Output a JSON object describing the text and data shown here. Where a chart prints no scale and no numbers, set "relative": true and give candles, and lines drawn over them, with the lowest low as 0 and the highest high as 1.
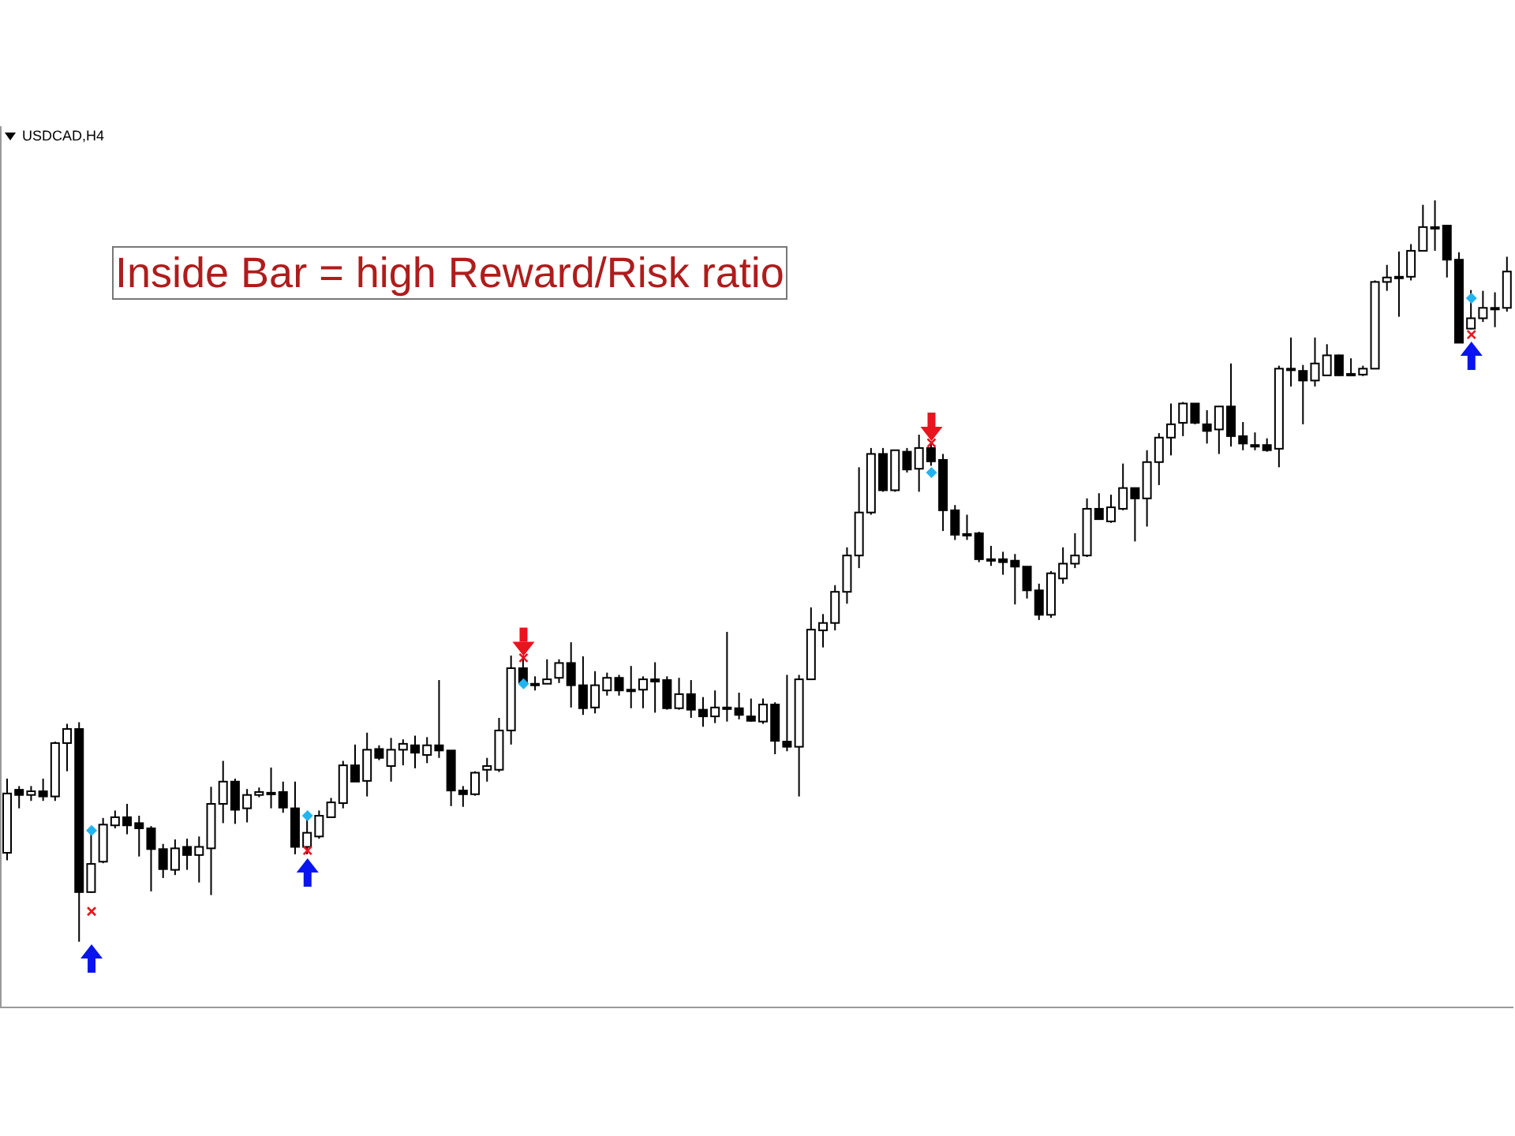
{
  "chart_data": {
    "type": "candlestick",
    "title": "Inside Bar = high Reward/Risk ratio",
    "subtitle": "USDCAD,H4",
    "relative": true,
    "color": "#000000",
    "categories": [
      null,
      null,
      null,
      null,
      null,
      null,
      null,
      null,
      null,
      null,
      null,
      null,
      null,
      null,
      null,
      null,
      null,
      null,
      null,
      null,
      null,
      null,
      null,
      null,
      null,
      null,
      null,
      null,
      null,
      null,
      null,
      null,
      null,
      null,
      null,
      null,
      null,
      null,
      null,
      null,
      null,
      null,
      null,
      null,
      null,
      null,
      null,
      null,
      null,
      null,
      null,
      null,
      null,
      null,
      null,
      null,
      null,
      null,
      null,
      null,
      null,
      null,
      null,
      null,
      null,
      null,
      null,
      null,
      null,
      null,
      null,
      null,
      null,
      null,
      null,
      null,
      null,
      null,
      null,
      null,
      null,
      null,
      null,
      null,
      null,
      null,
      null,
      null,
      null,
      null,
      null,
      null,
      null,
      null,
      null,
      null,
      null,
      null,
      null,
      null,
      null,
      null,
      null,
      null,
      null,
      null,
      null,
      null,
      null,
      null,
      null,
      null,
      null,
      null,
      null,
      null,
      null,
      null,
      null,
      null,
      null,
      null,
      null,
      null,
      null,
      null
    ],
    "ohlc": [
      [
        0.12,
        0.22,
        0.11,
        0.2
      ],
      [
        0.205,
        0.21,
        0.18,
        0.198
      ],
      [
        0.198,
        0.21,
        0.19,
        0.203
      ],
      [
        0.203,
        0.22,
        0.19,
        0.196
      ],
      [
        0.196,
        0.27,
        0.19,
        0.268
      ],
      [
        0.268,
        0.294,
        0.23,
        0.287
      ],
      [
        0.287,
        0.296,
        0,
        0.067
      ],
      [
        0.067,
        0.15,
        0.066,
        0.105
      ],
      [
        0.108,
        0.167,
        0.106,
        0.158
      ],
      [
        0.157,
        0.177,
        0.153,
        0.168
      ],
      [
        0.168,
        0.186,
        0.145,
        0.157
      ],
      [
        0.16,
        0.17,
        0.115,
        0.153
      ],
      [
        0.153,
        0.156,
        0.068,
        0.125
      ],
      [
        0.125,
        0.132,
        0.086,
        0.098
      ],
      [
        0.097,
        0.138,
        0.09,
        0.126
      ],
      [
        0.128,
        0.139,
        0.097,
        0.117
      ],
      [
        0.117,
        0.142,
        0.08,
        0.128
      ],
      [
        0.126,
        0.209,
        0.063,
        0.186
      ],
      [
        0.186,
        0.244,
        0.16,
        0.216
      ],
      [
        0.216,
        0.22,
        0.159,
        0.178
      ],
      [
        0.18,
        0.206,
        0.161,
        0.198
      ],
      [
        0.198,
        0.208,
        0.195,
        0.202
      ],
      [
        0.201,
        0.235,
        0.18,
        0.2
      ],
      [
        0.202,
        0.216,
        0.174,
        0.181
      ],
      [
        0.18,
        0.216,
        0.118,
        0.128
      ],
      [
        0.128,
        0.17,
        0.118,
        0.147
      ],
      [
        0.142,
        0.177,
        0.139,
        0.17
      ],
      [
        0.168,
        0.194,
        0.168,
        0.188
      ],
      [
        0.187,
        0.244,
        0.18,
        0.238
      ],
      [
        0.238,
        0.266,
        0.216,
        0.216
      ],
      [
        0.217,
        0.282,
        0.196,
        0.259
      ],
      [
        0.26,
        0.265,
        0.245,
        0.248
      ],
      [
        0.237,
        0.275,
        0.216,
        0.259
      ],
      [
        0.259,
        0.273,
        0.238,
        0.267
      ],
      [
        0.265,
        0.278,
        0.234,
        0.255
      ],
      [
        0.252,
        0.276,
        0.241,
        0.265
      ],
      [
        0.265,
        0.353,
        0.248,
        0.258
      ],
      [
        0.258,
        0.258,
        0.183,
        0.204
      ],
      [
        0.204,
        0.21,
        0.182,
        0.199
      ],
      [
        0.199,
        0.23,
        0.197,
        0.228
      ],
      [
        0.232,
        0.248,
        0.216,
        0.237
      ],
      [
        0.232,
        0.302,
        0.229,
        0.285
      ],
      [
        0.285,
        0.386,
        0.266,
        0.369
      ],
      [
        0.369,
        0.386,
        0.348,
        0.35
      ],
      [
        0.348,
        0.358,
        0.339,
        0.347
      ],
      [
        0.348,
        0.381,
        0.348,
        0.354
      ],
      [
        0.356,
        0.381,
        0.349,
        0.376
      ],
      [
        0.376,
        0.404,
        0.316,
        0.346
      ],
      [
        0.346,
        0.385,
        0.306,
        0.315
      ],
      [
        0.316,
        0.365,
        0.308,
        0.346
      ],
      [
        0.339,
        0.363,
        0.332,
        0.356
      ],
      [
        0.356,
        0.36,
        0.332,
        0.339
      ],
      [
        0.34,
        0.372,
        0.315,
        0.339
      ],
      [
        0.34,
        0.358,
        0.315,
        0.354
      ],
      [
        0.354,
        0.377,
        0.309,
        0.351
      ],
      [
        0.353,
        0.358,
        0.313,
        0.315
      ],
      [
        0.315,
        0.356,
        0.313,
        0.334
      ],
      [
        0.334,
        0.353,
        0.302,
        0.313
      ],
      [
        0.313,
        0.33,
        0.29,
        0.304
      ],
      [
        0.304,
        0.339,
        0.295,
        0.316
      ],
      [
        0.316,
        0.418,
        0.297,
        0.315
      ],
      [
        0.315,
        0.336,
        0.3,
        0.306
      ],
      [
        0.304,
        0.328,
        0.297,
        0.298
      ],
      [
        0.297,
        0.328,
        0.294,
        0.32
      ],
      [
        0.32,
        0.323,
        0.253,
        0.271
      ],
      [
        0.27,
        0.36,
        0.257,
        0.263
      ],
      [
        0.263,
        0.36,
        0.196,
        0.354
      ],
      [
        0.354,
        0.451,
        0.353,
        0.421
      ],
      [
        0.42,
        0.442,
        0.397,
        0.43
      ],
      [
        0.43,
        0.481,
        0.42,
        0.472
      ],
      [
        0.472,
        0.532,
        0.456,
        0.521
      ],
      [
        0.521,
        0.64,
        0.504,
        0.579
      ],
      [
        0.579,
        0.666,
        0.576,
        0.658
      ],
      [
        0.658,
        0.666,
        0.607,
        0.609
      ],
      [
        0.609,
        0.663,
        0.607,
        0.663
      ],
      [
        0.661,
        0.666,
        0.633,
        0.637
      ],
      [
        0.638,
        0.684,
        0.607,
        0.666
      ],
      [
        0.666,
        0.672,
        0.642,
        0.648
      ],
      [
        0.65,
        0.658,
        0.554,
        0.582
      ],
      [
        0.582,
        0.589,
        0.542,
        0.549
      ],
      [
        0.55,
        0.576,
        0.542,
        0.55
      ],
      [
        0.551,
        0.553,
        0.512,
        0.516
      ],
      [
        0.516,
        0.534,
        0.507,
        0.516
      ],
      [
        0.516,
        0.526,
        0.495,
        0.512
      ],
      [
        0.514,
        0.523,
        0.455,
        0.506
      ],
      [
        0.506,
        0.506,
        0.463,
        0.474
      ],
      [
        0.474,
        0.483,
        0.434,
        0.441
      ],
      [
        0.441,
        0.5,
        0.437,
        0.497
      ],
      [
        0.49,
        0.532,
        0.483,
        0.51
      ],
      [
        0.51,
        0.551,
        0.504,
        0.521
      ],
      [
        0.521,
        0.598,
        0.519,
        0.584
      ],
      [
        0.584,
        0.605,
        0.569,
        0.57
      ],
      [
        0.567,
        0.603,
        0.565,
        0.586
      ],
      [
        0.584,
        0.645,
        0.582,
        0.612
      ],
      [
        0.612,
        0.612,
        0.54,
        0.598
      ],
      [
        0.598,
        0.663,
        0.56,
        0.647
      ],
      [
        0.647,
        0.686,
        0.616,
        0.68
      ],
      [
        0.68,
        0.726,
        0.656,
        0.698
      ],
      [
        0.7,
        0.728,
        0.682,
        0.726
      ],
      [
        0.726,
        0.726,
        0.698,
        0.7
      ],
      [
        0.698,
        0.717,
        0.672,
        0.689
      ],
      [
        0.691,
        0.722,
        0.658,
        0.722
      ],
      [
        0.722,
        0.78,
        0.668,
        0.682
      ],
      [
        0.682,
        0.701,
        0.663,
        0.672
      ],
      [
        0.67,
        0.687,
        0.663,
        0.67
      ],
      [
        0.67,
        0.679,
        0.661,
        0.663
      ],
      [
        0.665,
        0.777,
        0.64,
        0.773
      ],
      [
        0.773,
        0.815,
        0.749,
        0.773
      ],
      [
        0.77,
        0.778,
        0.698,
        0.757
      ],
      [
        0.757,
        0.815,
        0.749,
        0.78
      ],
      [
        0.764,
        0.806,
        0.764,
        0.791
      ],
      [
        0.791,
        0.792,
        0.763,
        0.764
      ],
      [
        0.766,
        0.787,
        0.763,
        0.766
      ],
      [
        0.765,
        0.777,
        0.763,
        0.773
      ],
      [
        0.773,
        0.892,
        0.773,
        0.89
      ],
      [
        0.89,
        0.913,
        0.878,
        0.896
      ],
      [
        0.897,
        0.931,
        0.843,
        0.897
      ],
      [
        0.897,
        0.941,
        0.892,
        0.932
      ],
      [
        0.932,
        0.994,
        0.932,
        0.964
      ],
      [
        0.964,
        1,
        0.932,
        0.964
      ],
      [
        0.966,
        0.966,
        0.896,
        0.92
      ],
      [
        0.92,
        0.93,
        0.808,
        0.808
      ],
      [
        0.827,
        0.879,
        0.826,
        0.841
      ],
      [
        0.841,
        0.878,
        0.836,
        0.855
      ],
      [
        0.855,
        0.876,
        0.829,
        0.855
      ],
      [
        0.855,
        0.924,
        0.85,
        0.904
      ]
    ],
    "series": [
      {
        "type": "scatter",
        "marker": "triangle",
        "color": "#0a14f0",
        "values": [
          null,
          null,
          null,
          null,
          null,
          null,
          null,
          -0.013,
          null,
          null,
          null,
          null,
          null,
          null,
          null,
          null,
          null,
          null,
          null,
          null,
          null,
          null,
          null,
          null,
          null,
          0.103,
          null,
          null,
          null,
          null,
          null,
          null,
          null,
          null,
          null,
          null,
          null,
          null,
          null,
          null,
          null,
          null,
          null,
          null,
          null,
          null,
          null,
          null,
          null,
          null,
          null,
          null,
          null,
          null,
          null,
          null,
          null,
          null,
          null,
          null,
          null,
          null,
          null,
          null,
          null,
          null,
          null,
          null,
          null,
          null,
          null,
          null,
          null,
          null,
          null,
          null,
          null,
          null,
          null,
          null,
          null,
          null,
          null,
          null,
          null,
          null,
          null,
          null,
          null,
          null,
          null,
          null,
          null,
          null,
          null,
          null,
          null,
          null,
          null,
          null,
          null,
          null,
          null,
          null,
          null,
          null,
          null,
          null,
          null,
          null,
          null,
          null,
          null,
          null,
          null,
          null,
          null,
          null,
          null,
          null,
          null,
          null,
          0.8,
          null,
          null,
          null
        ]
      },
      {
        "type": "scatter",
        "marker": "triangle",
        "color": "#e8141e",
        "values": [
          null,
          null,
          null,
          null,
          null,
          null,
          null,
          null,
          null,
          null,
          null,
          null,
          null,
          null,
          null,
          null,
          null,
          null,
          null,
          null,
          null,
          null,
          null,
          null,
          null,
          null,
          null,
          null,
          null,
          null,
          null,
          null,
          null,
          null,
          null,
          null,
          null,
          null,
          null,
          null,
          null,
          null,
          null,
          0.395,
          null,
          null,
          null,
          null,
          null,
          null,
          null,
          null,
          null,
          null,
          null,
          null,
          null,
          null,
          null,
          null,
          null,
          null,
          null,
          null,
          null,
          null,
          null,
          null,
          null,
          null,
          null,
          null,
          null,
          null,
          null,
          null,
          null,
          0.685,
          null,
          null,
          null,
          null,
          null,
          null,
          null,
          null,
          null,
          null,
          null,
          null,
          null,
          null,
          null,
          null,
          null,
          null,
          null,
          null,
          null,
          null,
          null,
          null,
          null,
          null,
          null,
          null,
          null,
          null,
          null,
          null,
          null,
          null,
          null,
          null,
          null,
          null,
          null,
          null,
          null,
          null,
          null,
          null,
          null,
          null,
          null,
          null
        ]
      },
      {
        "type": "scatter",
        "marker": "diamond",
        "color": "#22b4f0",
        "values": [
          null,
          null,
          null,
          null,
          null,
          null,
          null,
          0.15,
          null,
          null,
          null,
          null,
          null,
          null,
          null,
          null,
          null,
          null,
          null,
          null,
          null,
          null,
          null,
          null,
          null,
          0.17,
          null,
          null,
          null,
          null,
          null,
          null,
          null,
          null,
          null,
          null,
          null,
          null,
          null,
          null,
          null,
          null,
          null,
          0.348,
          null,
          null,
          null,
          null,
          null,
          null,
          null,
          null,
          null,
          null,
          null,
          null,
          null,
          null,
          null,
          null,
          null,
          null,
          null,
          null,
          null,
          null,
          null,
          null,
          null,
          null,
          null,
          null,
          null,
          null,
          null,
          null,
          null,
          0.633,
          null,
          null,
          null,
          null,
          null,
          null,
          null,
          null,
          null,
          null,
          null,
          null,
          null,
          null,
          null,
          null,
          null,
          null,
          null,
          null,
          null,
          null,
          null,
          null,
          null,
          null,
          null,
          null,
          null,
          null,
          null,
          null,
          null,
          null,
          null,
          null,
          null,
          null,
          null,
          null,
          null,
          null,
          null,
          null,
          0.868,
          null,
          null,
          null
        ]
      },
      {
        "type": "scatter",
        "marker": "cross",
        "color": "#e8141e",
        "values": [
          null,
          null,
          null,
          null,
          null,
          null,
          null,
          0.041,
          null,
          null,
          null,
          null,
          null,
          null,
          null,
          null,
          null,
          null,
          null,
          null,
          null,
          null,
          null,
          null,
          null,
          0.123,
          null,
          null,
          null,
          null,
          null,
          null,
          null,
          null,
          null,
          null,
          null,
          null,
          null,
          null,
          null,
          null,
          null,
          0.383,
          null,
          null,
          null,
          null,
          null,
          null,
          null,
          null,
          null,
          null,
          null,
          null,
          null,
          null,
          null,
          null,
          null,
          null,
          null,
          null,
          null,
          null,
          null,
          null,
          null,
          null,
          null,
          null,
          null,
          null,
          null,
          null,
          null,
          0.673,
          null,
          null,
          null,
          null,
          null,
          null,
          null,
          null,
          null,
          null,
          null,
          null,
          null,
          null,
          null,
          null,
          null,
          null,
          null,
          null,
          null,
          null,
          null,
          null,
          null,
          null,
          null,
          null,
          null,
          null,
          null,
          null,
          null,
          null,
          null,
          null,
          null,
          null,
          null,
          null,
          null,
          null,
          null,
          null,
          0.819,
          null,
          null,
          null
        ]
      }
    ]
  }
}
